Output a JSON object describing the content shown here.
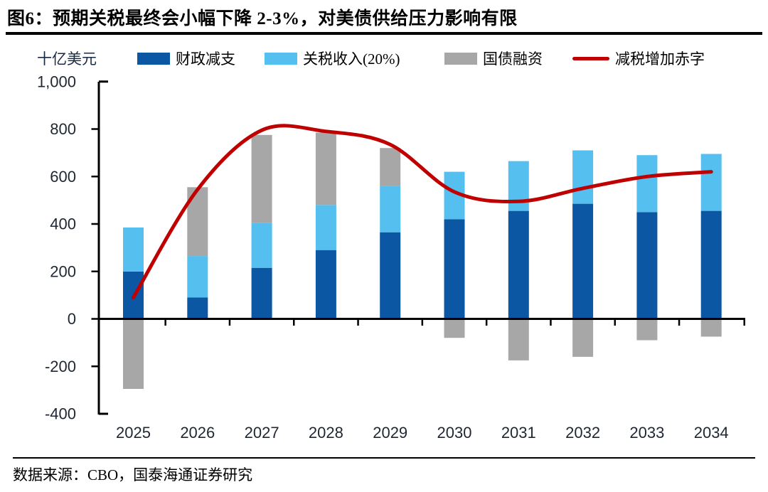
{
  "title": "图6：预期关税最终会小幅下降 2-3%，对美债供给压力影响有限",
  "unit_label": "十亿美元",
  "source": "数据来源：CBO，国泰海通证券研究",
  "colors": {
    "fiscal_cut_blue": "#0C57A3",
    "tariff_light_blue": "#55BFEF",
    "debt_gray": "#A7A7A7",
    "deficit_red": "#C00000",
    "axis_black": "#000000",
    "tick_text": "#1F2733"
  },
  "chart_data": {
    "type": "bar",
    "subtype": "stacked bars with overlaid line",
    "title": "图6：预期关税最终会小幅下降 2-3%，对美债供给压力影响有限",
    "unit": "十亿美元",
    "categories": [
      "2025",
      "2026",
      "2027",
      "2028",
      "2029",
      "2030",
      "2031",
      "2032",
      "2033",
      "2034"
    ],
    "series": [
      {
        "name": "财政减支",
        "type": "bar",
        "color": "#0C57A3",
        "values": [
          200,
          90,
          215,
          290,
          365,
          420,
          455,
          485,
          450,
          455
        ]
      },
      {
        "name": "关税收入(20%)",
        "type": "bar",
        "color": "#55BFEF",
        "values": [
          185,
          175,
          190,
          190,
          195,
          200,
          210,
          225,
          240,
          240
        ]
      },
      {
        "name": "国债融资",
        "type": "bar",
        "color": "#A7A7A7",
        "values": [
          -295,
          290,
          370,
          305,
          160,
          -80,
          -175,
          -160,
          -90,
          -75
        ]
      },
      {
        "name": "减税增加赤字",
        "type": "line",
        "color": "#C00000",
        "values": [
          90,
          545,
          795,
          790,
          735,
          535,
          495,
          550,
          600,
          620
        ]
      }
    ],
    "stacked": true,
    "xlabel": "",
    "ylabel": "十亿美元",
    "ylim": [
      -400,
      1000
    ],
    "y_tick_values": [
      1000,
      800,
      600,
      400,
      200,
      0,
      -200,
      -400
    ],
    "y_tick_labels": [
      "1,000",
      "800",
      "600",
      "400",
      "200",
      "0",
      "-200",
      "-400"
    ],
    "grid": false,
    "legend_position": "top"
  }
}
